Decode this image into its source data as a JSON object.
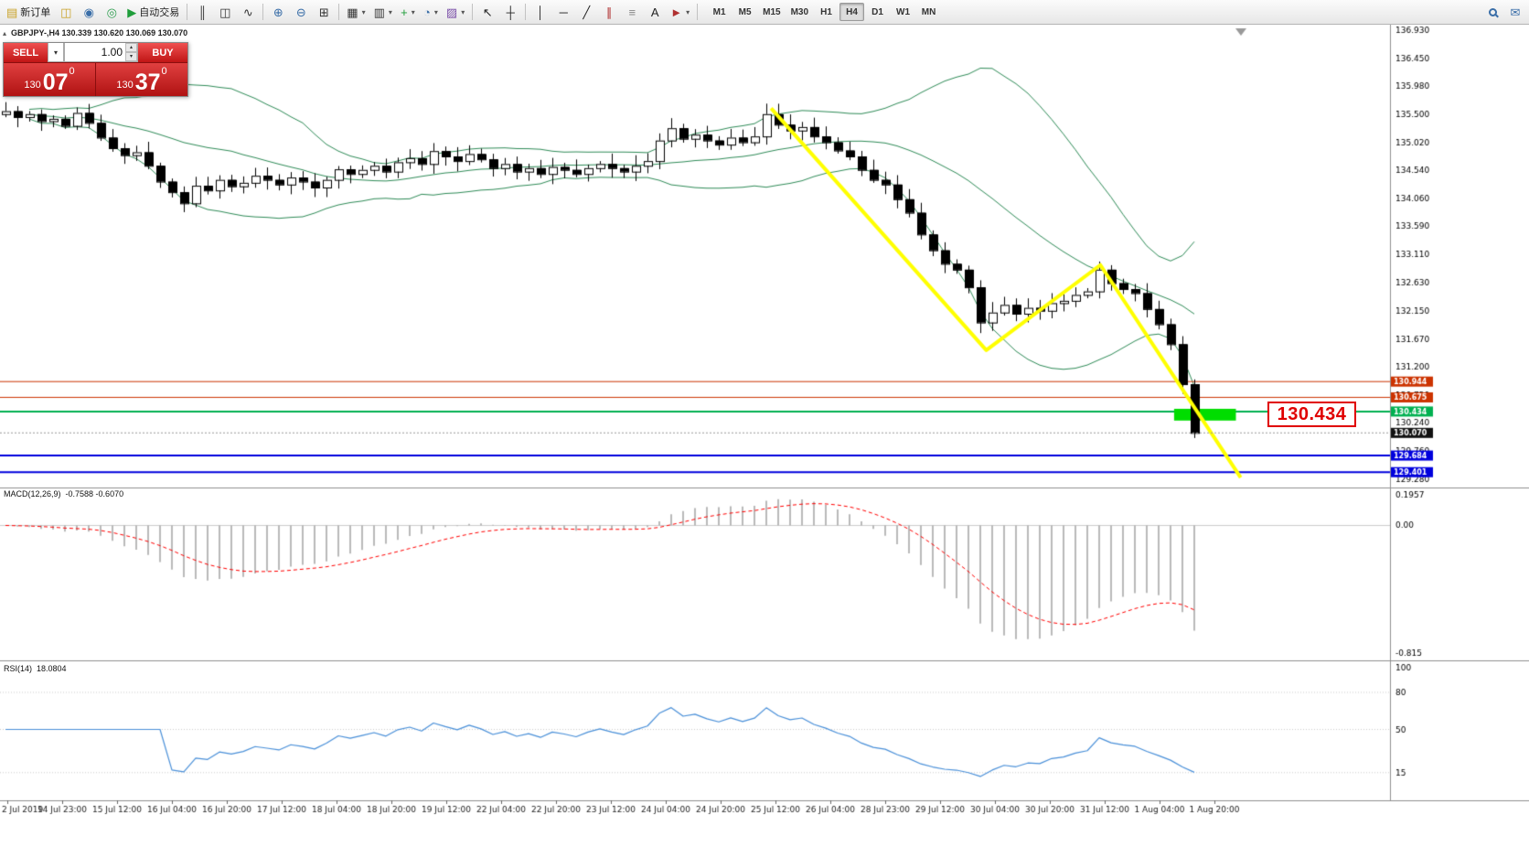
{
  "icons": {
    "chevron_down": "▾",
    "spin_up": "▴",
    "spin_down": "▾",
    "panel_collapse": "▴"
  },
  "toolbar": {
    "buttons_left": [
      {
        "name": "new-order-button",
        "icon": "new-order-icon",
        "glyph": "▤",
        "color": "#c9a227",
        "label": "新订单"
      },
      {
        "name": "chart-profiles-button",
        "icon": "chart-profiles-icon",
        "glyph": "◫",
        "color": "#c9a227"
      },
      {
        "name": "market-watch-button",
        "icon": "market-watch-icon",
        "glyph": "◉",
        "color": "#3a6ea8"
      },
      {
        "name": "data-window-button",
        "icon": "data-window-icon",
        "glyph": "◎",
        "color": "#2e9e4f"
      },
      {
        "name": "autotrading-button",
        "icon": "autotrading-play-icon",
        "glyph": "▶",
        "color": "#1f9d3a",
        "label": "自动交易"
      },
      {
        "sep": true
      },
      {
        "name": "bar-chart-button",
        "icon": "bar-chart-icon",
        "glyph": "║",
        "color": "#333333"
      },
      {
        "name": "candlestick-chart-button",
        "icon": "candlestick-chart-icon",
        "glyph": "◫",
        "color": "#333333"
      },
      {
        "name": "line-chart-button",
        "icon": "line-chart-icon",
        "glyph": "∿",
        "color": "#333333"
      },
      {
        "sep": true
      },
      {
        "name": "zoom-in-button",
        "icon": "zoom-in-icon",
        "glyph": "⊕",
        "color": "#3a6ea8"
      },
      {
        "name": "zoom-out-button",
        "icon": "zoom-out-icon",
        "glyph": "⊖",
        "color": "#3a6ea8"
      },
      {
        "name": "tile-windows-button",
        "icon": "tile-windows-icon",
        "glyph": "⊞",
        "color": "#333333"
      },
      {
        "sep": true
      },
      {
        "name": "new-chart-button",
        "icon": "new-chart-icon",
        "glyph": "▦",
        "color": "#333333",
        "caret": true
      },
      {
        "name": "profiles-button",
        "icon": "profiles-icon",
        "glyph": "▥",
        "color": "#333333",
        "caret": true
      },
      {
        "name": "indicators-button",
        "icon": "indicators-plus-icon",
        "glyph": "+",
        "color": "#1f9d3a",
        "caret": true
      },
      {
        "name": "periods-button",
        "icon": "clock-icon",
        "glyph": "◔",
        "color": "#3a6ea8",
        "caret": true
      },
      {
        "name": "templates-button",
        "icon": "templates-icon",
        "glyph": "▨",
        "color": "#7a4ea8",
        "caret": true
      },
      {
        "sep": true
      },
      {
        "name": "cursor-button",
        "icon": "cursor-arrow-icon",
        "glyph": "↖",
        "color": "#222222"
      },
      {
        "name": "crosshair-button",
        "icon": "crosshair-icon",
        "glyph": "┼",
        "color": "#222222"
      },
      {
        "sep": true
      },
      {
        "name": "vertical-line-button",
        "icon": "vertical-line-icon",
        "glyph": "│",
        "color": "#222222"
      },
      {
        "name": "horizontal-line-button",
        "icon": "horizontal-line-icon",
        "glyph": "─",
        "color": "#222222"
      },
      {
        "name": "trendline-button",
        "icon": "trendline-icon",
        "glyph": "╱",
        "color": "#222222"
      },
      {
        "name": "equidistant-channel-button",
        "icon": "channel-icon",
        "glyph": "∥",
        "color": "#b03030"
      },
      {
        "name": "fibonacci-button",
        "icon": "fibonacci-icon",
        "glyph": "≡",
        "color": "#888888"
      },
      {
        "name": "text-button",
        "icon": "text-icon",
        "glyph": "A",
        "color": "#222222"
      },
      {
        "name": "arrows-button",
        "icon": "arrow-label-icon",
        "glyph": "►",
        "color": "#b03030",
        "caret": true
      },
      {
        "sep": true
      }
    ],
    "timeframes": [
      {
        "label": "M1"
      },
      {
        "label": "M5"
      },
      {
        "label": "M15"
      },
      {
        "label": "M30"
      },
      {
        "label": "H1"
      },
      {
        "label": "H4",
        "active": true
      },
      {
        "label": "D1"
      },
      {
        "label": "W1"
      },
      {
        "label": "MN"
      }
    ],
    "buttons_right": [
      {
        "name": "search-button",
        "icon": "search-icon",
        "shape": "magnifier",
        "color": "#3a6ea8"
      },
      {
        "name": "chat-button",
        "icon": "chat-icon",
        "glyph": "✉",
        "color": "#3a6ea8"
      }
    ]
  },
  "symbol_bar": {
    "text": "GBPJPY-,H4  130.339 130.620 130.069 130.070"
  },
  "trade_panel": {
    "sell_label": "SELL",
    "buy_label": "BUY",
    "lot_value": "1.00",
    "sell_price": {
      "prefix": "130",
      "big": "07",
      "sup": "0"
    },
    "buy_price": {
      "prefix": "130",
      "big": "37",
      "sup": "0"
    }
  },
  "annotation": {
    "price_label": "130.434"
  },
  "chart_data": {
    "type": "candlestick",
    "symbol": "GBPJPY-",
    "timeframe": "H4",
    "first_open": 135.5,
    "closes": [
      135.55,
      135.45,
      135.5,
      135.38,
      135.42,
      135.3,
      135.52,
      135.35,
      135.1,
      134.92,
      134.8,
      134.85,
      134.62,
      134.35,
      134.17,
      133.98,
      134.28,
      134.2,
      134.38,
      134.27,
      134.33,
      134.45,
      134.38,
      134.3,
      134.42,
      134.35,
      134.25,
      134.38,
      134.56,
      134.48,
      134.55,
      134.62,
      134.52,
      134.68,
      134.75,
      134.65,
      134.87,
      134.78,
      134.7,
      134.82,
      134.73,
      134.58,
      134.65,
      134.52,
      134.58,
      134.48,
      134.6,
      134.55,
      134.48,
      134.58,
      134.65,
      134.58,
      134.52,
      134.62,
      134.7,
      135.05,
      135.26,
      135.08,
      135.15,
      135.05,
      134.98,
      135.1,
      135.02,
      135.12,
      135.5,
      135.32,
      135.22,
      135.28,
      135.12,
      135.02,
      134.88,
      134.78,
      134.55,
      134.38,
      134.3,
      134.05,
      133.82,
      133.45,
      133.18,
      132.95,
      132.85,
      132.55,
      131.95,
      132.12,
      132.25,
      132.1,
      132.2,
      132.15,
      132.28,
      132.32,
      132.42,
      132.48,
      132.85,
      132.62,
      132.52,
      132.45,
      132.18,
      131.92,
      131.58,
      130.9,
      130.07
    ],
    "colors": {
      "bull": "#ffffff",
      "bear": "#000000",
      "wick": "#000000",
      "bollinger": "#2e8b57",
      "macd_histogram": "#a8a8a8",
      "macd_signal": "#ff0000",
      "rsi": "#4a90d9",
      "trendline": "#ffff00",
      "separator": "#909090",
      "axis_text": "#000000"
    },
    "price_axis": {
      "min": 129.28,
      "max": 136.93,
      "labels": [
        {
          "v": 136.93,
          "t": "136.930"
        },
        {
          "v": 136.45,
          "t": "136.450"
        },
        {
          "v": 135.98,
          "t": "135.980"
        },
        {
          "v": 135.5,
          "t": "135.500"
        },
        {
          "v": 135.02,
          "t": "135.020"
        },
        {
          "v": 134.54,
          "t": "134.540"
        },
        {
          "v": 134.06,
          "t": "134.060"
        },
        {
          "v": 133.59,
          "t": "133.590"
        },
        {
          "v": 133.11,
          "t": "133.110"
        },
        {
          "v": 132.63,
          "t": "132.630"
        },
        {
          "v": 132.15,
          "t": "132.150"
        },
        {
          "v": 131.67,
          "t": "131.670"
        },
        {
          "v": 131.2,
          "t": "131.200"
        },
        {
          "v": 130.72,
          "t": "130.720"
        },
        {
          "v": 130.24,
          "t": "130.240"
        },
        {
          "v": 129.76,
          "t": "129.760"
        },
        {
          "v": 129.28,
          "t": "129.280"
        }
      ]
    },
    "hlines": [
      {
        "price": 130.944,
        "label": "130.944",
        "color": "#cc3300",
        "width": 1
      },
      {
        "price": 130.675,
        "label": "130.675",
        "color": "#cc3300",
        "width": 1
      },
      {
        "price": 130.434,
        "label": "130.434",
        "color": "#00b050",
        "width": 2
      },
      {
        "price": 129.684,
        "label": "129.684",
        "color": "#0000dd",
        "width": 2
      },
      {
        "price": 129.401,
        "label": "129.401",
        "color": "#0000dd",
        "width": 2
      }
    ],
    "current_price": {
      "value": 130.07,
      "label": "130.070",
      "tag_color": "#111111"
    },
    "trendlines": {
      "color": "#ffff00",
      "width": 4,
      "points": [
        [
          64.4,
          135.6
        ],
        [
          82.5,
          131.48
        ],
        [
          92.1,
          132.93
        ],
        [
          103.9,
          129.31
        ]
      ]
    },
    "highlight_rect": {
      "color": "#00dd00",
      "i0": 98.3,
      "i1": 103.5,
      "p_top": 130.48,
      "p_bot": 130.28
    },
    "bollinger": {
      "period": 20,
      "deviation": 2
    },
    "macd": {
      "label": "MACD(12,26,9)",
      "values_text": "-0.7588 -0.6070",
      "fast": 12,
      "slow": 26,
      "signal": 9,
      "range": [
        -0.815,
        0.1957
      ],
      "axis": [
        {
          "v": 0.1957,
          "t": "0.1957"
        },
        {
          "v": 0,
          "t": "0.00"
        },
        {
          "v": -0.815,
          "t": "-0.815"
        }
      ]
    },
    "rsi": {
      "label": "RSI(14)",
      "value_text": "18.0804",
      "period": 14,
      "levels": [
        80,
        50,
        15
      ],
      "axis": [
        {
          "v": 100,
          "t": "100"
        },
        {
          "v": 80,
          "t": "80"
        },
        {
          "v": 50,
          "t": "50"
        },
        {
          "v": 15,
          "t": "15"
        }
      ]
    },
    "time_axis": [
      "2 Jul 2019",
      "14 Jul 23:00",
      "15 Jul 12:00",
      "16 Jul 04:00",
      "16 Jul 20:00",
      "17 Jul 12:00",
      "18 Jul 04:00",
      "18 Jul 20:00",
      "19 Jul 12:00",
      "22 Jul 04:00",
      "22 Jul 20:00",
      "23 Jul 12:00",
      "24 Jul 04:00",
      "24 Jul 20:00",
      "25 Jul 12:00",
      "26 Jul 04:00",
      "28 Jul 23:00",
      "29 Jul 12:00",
      "30 Jul 04:00",
      "30 Jul 20:00",
      "31 Jul 12:00",
      "1 Aug 04:00",
      "1 Aug 20:00"
    ]
  }
}
